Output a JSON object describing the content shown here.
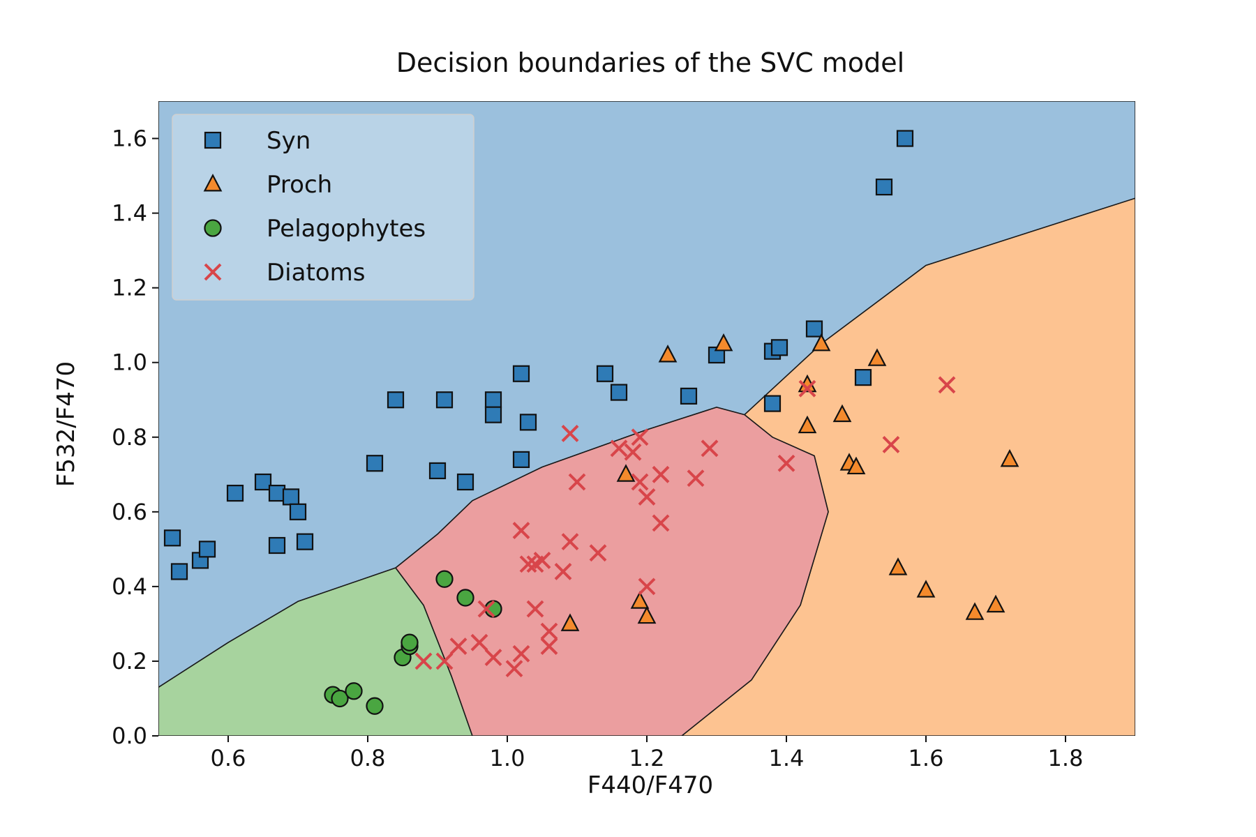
{
  "chart_data": {
    "type": "scatter",
    "title": "Decision boundaries of the SVC model",
    "xlabel": "F440/F470",
    "ylabel": "F532/F470",
    "xlim": [
      0.5,
      1.9
    ],
    "ylim": [
      0.0,
      1.7
    ],
    "xticks": [
      0.6,
      0.8,
      1.0,
      1.2,
      1.4,
      1.6,
      1.8
    ],
    "yticks": [
      0.0,
      0.2,
      0.4,
      0.6,
      0.8,
      1.0,
      1.2,
      1.4,
      1.6
    ],
    "xtick_labels": [
      "0.6",
      "0.8",
      "1.0",
      "1.2",
      "1.4",
      "1.6",
      "1.8"
    ],
    "ytick_labels": [
      "0.0",
      "0.2",
      "0.4",
      "0.6",
      "0.8",
      "1.0",
      "1.2",
      "1.4",
      "1.6"
    ],
    "legend_position": "top-left",
    "grid": false,
    "regions": [
      {
        "class": "Syn",
        "color": "#9bc0dd",
        "polygon": [
          [
            0.5,
            0.13
          ],
          [
            0.6,
            0.25
          ],
          [
            0.7,
            0.36
          ],
          [
            0.84,
            0.45
          ],
          [
            0.9,
            0.54
          ],
          [
            0.95,
            0.63
          ],
          [
            1.05,
            0.72
          ],
          [
            1.2,
            0.82
          ],
          [
            1.3,
            0.88
          ],
          [
            1.34,
            0.86
          ],
          [
            1.45,
            1.05
          ],
          [
            1.6,
            1.26
          ],
          [
            1.8,
            1.38
          ],
          [
            1.9,
            1.44
          ],
          [
            1.9,
            1.7
          ],
          [
            0.5,
            1.7
          ]
        ]
      },
      {
        "class": "Proch",
        "color": "#fdc391",
        "polygon": [
          [
            1.25,
            0.0
          ],
          [
            1.35,
            0.15
          ],
          [
            1.42,
            0.35
          ],
          [
            1.46,
            0.6
          ],
          [
            1.44,
            0.75
          ],
          [
            1.38,
            0.8
          ],
          [
            1.34,
            0.86
          ],
          [
            1.45,
            1.05
          ],
          [
            1.6,
            1.26
          ],
          [
            1.8,
            1.38
          ],
          [
            1.9,
            1.44
          ],
          [
            1.9,
            0.0
          ]
        ]
      },
      {
        "class": "Pelagophytes",
        "color": "#a7d39e",
        "polygon": [
          [
            0.5,
            0.0
          ],
          [
            0.5,
            0.13
          ],
          [
            0.6,
            0.25
          ],
          [
            0.7,
            0.36
          ],
          [
            0.84,
            0.45
          ],
          [
            0.88,
            0.35
          ],
          [
            0.92,
            0.16
          ],
          [
            0.95,
            0.0
          ]
        ]
      },
      {
        "class": "Diatoms",
        "color": "#eb9e9f",
        "polygon": [
          [
            0.95,
            0.0
          ],
          [
            0.92,
            0.16
          ],
          [
            0.88,
            0.35
          ],
          [
            0.84,
            0.45
          ],
          [
            0.9,
            0.54
          ],
          [
            0.95,
            0.63
          ],
          [
            1.05,
            0.72
          ],
          [
            1.2,
            0.82
          ],
          [
            1.3,
            0.88
          ],
          [
            1.34,
            0.86
          ],
          [
            1.38,
            0.8
          ],
          [
            1.44,
            0.75
          ],
          [
            1.46,
            0.6
          ],
          [
            1.42,
            0.35
          ],
          [
            1.35,
            0.15
          ],
          [
            1.25,
            0.0
          ]
        ]
      }
    ],
    "series": [
      {
        "name": "Syn",
        "marker": "square",
        "color": "#2f7bb6",
        "x": [
          0.52,
          0.53,
          0.56,
          0.57,
          0.61,
          0.65,
          0.67,
          0.69,
          0.7,
          0.67,
          0.71,
          0.81,
          0.84,
          0.9,
          0.91,
          0.94,
          0.98,
          0.98,
          1.02,
          1.02,
          1.03,
          1.14,
          1.16,
          1.26,
          1.3,
          1.38,
          1.38,
          1.39,
          1.44,
          1.51,
          1.54,
          1.57
        ],
        "y": [
          0.53,
          0.44,
          0.47,
          0.5,
          0.65,
          0.68,
          0.65,
          0.64,
          0.6,
          0.51,
          0.52,
          0.73,
          0.9,
          0.71,
          0.9,
          0.68,
          0.9,
          0.86,
          0.97,
          0.74,
          0.84,
          0.97,
          0.92,
          0.91,
          1.02,
          0.89,
          1.03,
          1.04,
          1.09,
          0.96,
          1.47,
          1.6
        ]
      },
      {
        "name": "Proch",
        "marker": "triangle",
        "color": "#f48a2c",
        "x": [
          1.09,
          1.17,
          1.19,
          1.2,
          1.23,
          1.31,
          1.43,
          1.43,
          1.45,
          1.48,
          1.49,
          1.5,
          1.53,
          1.56,
          1.6,
          1.67,
          1.7,
          1.72
        ],
        "y": [
          0.3,
          0.7,
          0.36,
          0.32,
          1.02,
          1.05,
          0.83,
          0.94,
          1.05,
          0.86,
          0.73,
          0.72,
          1.01,
          0.45,
          0.39,
          0.33,
          0.35,
          0.74
        ]
      },
      {
        "name": "Pelagophytes",
        "marker": "circle",
        "color": "#4aa641",
        "x": [
          0.75,
          0.76,
          0.78,
          0.81,
          0.85,
          0.86,
          0.86,
          0.91,
          0.94,
          0.98
        ],
        "y": [
          0.11,
          0.1,
          0.12,
          0.08,
          0.21,
          0.24,
          0.25,
          0.42,
          0.37,
          0.34
        ]
      },
      {
        "name": "Diatoms",
        "marker": "x",
        "color": "#d8454a",
        "x": [
          0.88,
          0.91,
          0.93,
          0.96,
          0.97,
          0.98,
          1.01,
          1.02,
          1.02,
          1.03,
          1.04,
          1.04,
          1.05,
          1.06,
          1.06,
          1.08,
          1.09,
          1.09,
          1.1,
          1.13,
          1.16,
          1.18,
          1.19,
          1.19,
          1.2,
          1.2,
          1.22,
          1.22,
          1.27,
          1.29,
          1.4,
          1.43,
          1.55,
          1.63
        ],
        "y": [
          0.2,
          0.2,
          0.24,
          0.25,
          0.34,
          0.21,
          0.18,
          0.22,
          0.55,
          0.46,
          0.46,
          0.34,
          0.47,
          0.28,
          0.24,
          0.44,
          0.81,
          0.52,
          0.68,
          0.49,
          0.77,
          0.76,
          0.68,
          0.8,
          0.64,
          0.4,
          0.57,
          0.7,
          0.69,
          0.77,
          0.73,
          0.93,
          0.78,
          0.94
        ]
      }
    ]
  }
}
